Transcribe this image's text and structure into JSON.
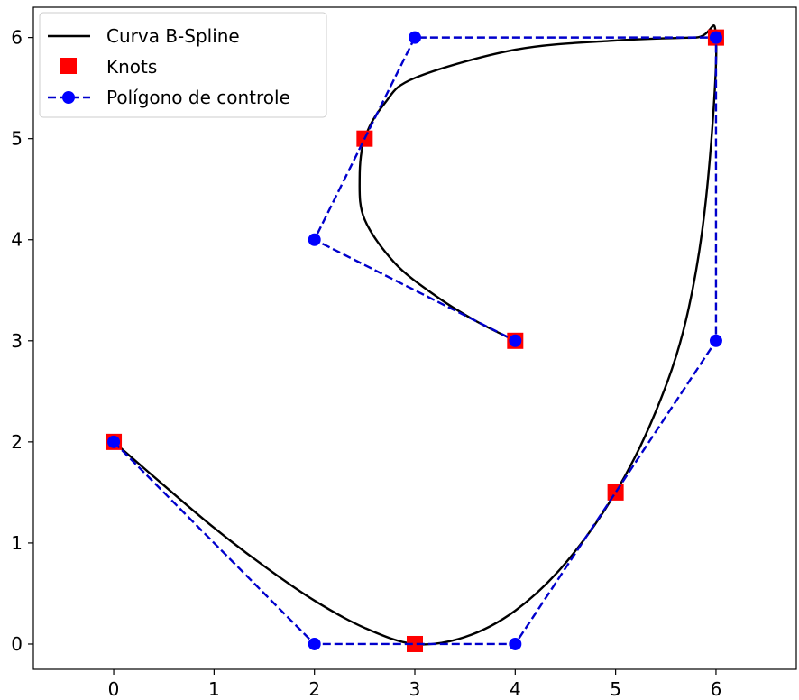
{
  "chart_data": {
    "type": "line",
    "title": "",
    "xlabel": "",
    "ylabel": "",
    "xlim": [
      -0.8,
      6.8
    ],
    "ylim": [
      -0.25,
      6.3
    ],
    "xticks": [
      "0",
      "1",
      "2",
      "3",
      "4",
      "5",
      "6"
    ],
    "yticks": [
      "0",
      "1",
      "2",
      "3",
      "4",
      "5",
      "6"
    ],
    "grid": false,
    "legend_position": "top-left",
    "series": [
      {
        "name": "Curva B-Spline",
        "style": "solid",
        "color": "#000000",
        "x": [
          0.0,
          0.5,
          1.0,
          1.5,
          2.0,
          2.5,
          3.0,
          3.5,
          4.0,
          4.5,
          5.0,
          5.4,
          5.7,
          5.9,
          6.0,
          5.8,
          5.0,
          4.0,
          3.0,
          2.7,
          2.5,
          2.45,
          2.5,
          2.8,
          3.2,
          3.6,
          4.0
        ],
        "y": [
          2.0,
          1.57,
          1.15,
          0.77,
          0.43,
          0.16,
          0.0,
          0.07,
          0.33,
          0.8,
          1.5,
          2.3,
          3.2,
          4.4,
          6.0,
          6.0,
          5.97,
          5.88,
          5.6,
          5.35,
          5.0,
          4.6,
          4.2,
          3.77,
          3.45,
          3.2,
          3.0
        ]
      },
      {
        "name": "Knots",
        "style": "square-markers",
        "color": "#ff0000",
        "x": [
          0,
          3,
          5,
          6,
          2.5,
          4
        ],
        "y": [
          2,
          0,
          1.5,
          6,
          5,
          3
        ]
      },
      {
        "name": "Polígono de controle",
        "style": "dashed-with-circles",
        "color": "#0000cc",
        "x": [
          0,
          2,
          4,
          6,
          6,
          3,
          2,
          4
        ],
        "y": [
          2,
          0,
          0,
          3,
          6,
          6,
          4,
          3
        ]
      }
    ]
  }
}
